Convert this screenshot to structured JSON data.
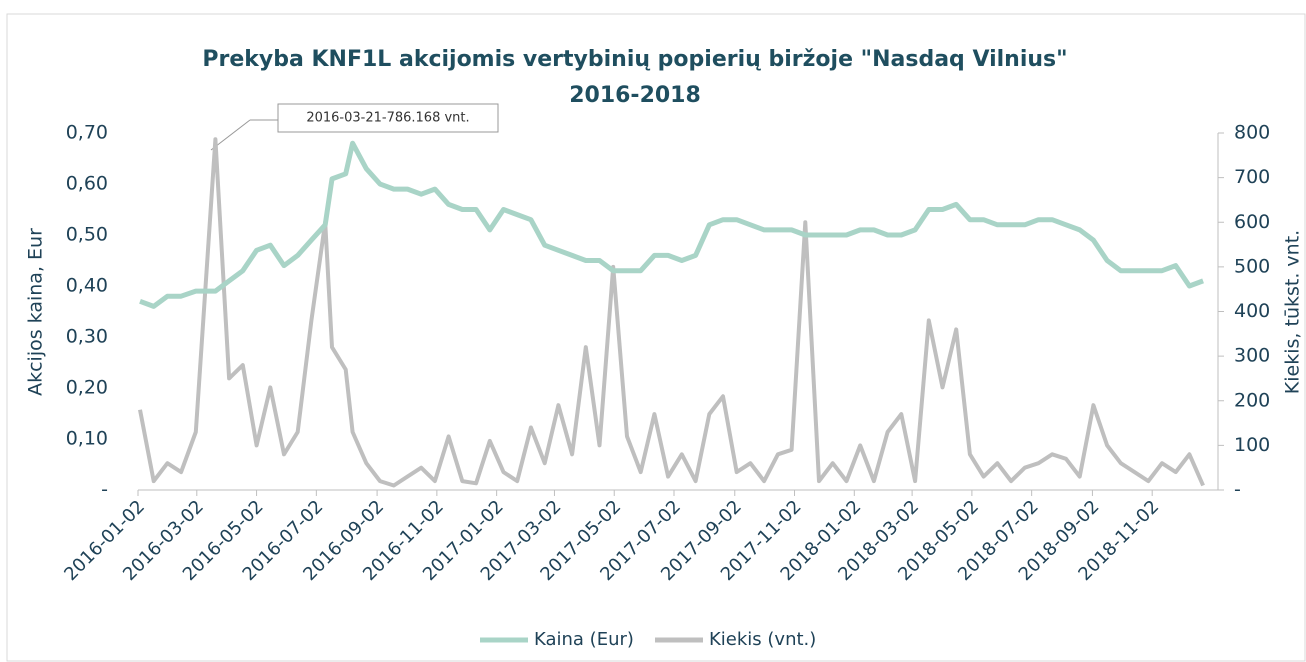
{
  "chart_data": {
    "type": "line",
    "title": "Prekyba KNF1L akcijomis vertybinių popierių biržoje \"Nasdaq Vilnius\"",
    "subtitle": "2016-2018",
    "y_label": "Akcijos kaina, Eur",
    "y2_label": "Kiekis, tūkst. vnt.",
    "annotation": "2016-03-21-786.168 vnt.",
    "x": [
      "2016-01-04",
      "2016-01-18",
      "2016-02-01",
      "2016-02-15",
      "2016-03-01",
      "2016-03-21",
      "2016-04-04",
      "2016-04-18",
      "2016-05-02",
      "2016-05-16",
      "2016-05-30",
      "2016-06-13",
      "2016-06-27",
      "2016-07-11",
      "2016-07-18",
      "2016-08-01",
      "2016-08-08",
      "2016-08-22",
      "2016-09-05",
      "2016-09-19",
      "2016-10-03",
      "2016-10-17",
      "2016-10-31",
      "2016-11-14",
      "2016-11-28",
      "2016-12-12",
      "2016-12-26",
      "2017-01-09",
      "2017-01-23",
      "2017-02-06",
      "2017-02-20",
      "2017-03-06",
      "2017-03-20",
      "2017-04-03",
      "2017-04-17",
      "2017-05-01",
      "2017-05-15",
      "2017-05-29",
      "2017-06-12",
      "2017-06-26",
      "2017-07-10",
      "2017-07-24",
      "2017-08-07",
      "2017-08-21",
      "2017-09-04",
      "2017-09-18",
      "2017-10-02",
      "2017-10-16",
      "2017-10-30",
      "2017-11-13",
      "2017-11-27",
      "2017-12-11",
      "2017-12-25",
      "2018-01-08",
      "2018-01-22",
      "2018-02-05",
      "2018-02-19",
      "2018-03-05",
      "2018-03-19",
      "2018-04-02",
      "2018-04-16",
      "2018-04-30",
      "2018-05-14",
      "2018-05-28",
      "2018-06-11",
      "2018-06-25",
      "2018-07-09",
      "2018-07-23",
      "2018-08-06",
      "2018-08-20",
      "2018-09-03",
      "2018-09-17",
      "2018-10-01",
      "2018-10-15",
      "2018-10-29",
      "2018-11-12",
      "2018-11-26",
      "2018-12-10",
      "2018-12-24"
    ],
    "series": [
      {
        "name": "Kaina (Eur)",
        "color": "#a9d4c7",
        "axis": "y",
        "values": [
          0.37,
          0.36,
          0.38,
          0.38,
          0.39,
          0.39,
          0.41,
          0.43,
          0.47,
          0.48,
          0.44,
          0.46,
          0.49,
          0.52,
          0.61,
          0.62,
          0.68,
          0.63,
          0.6,
          0.59,
          0.59,
          0.58,
          0.59,
          0.56,
          0.55,
          0.55,
          0.51,
          0.55,
          0.54,
          0.53,
          0.48,
          0.47,
          0.46,
          0.45,
          0.45,
          0.43,
          0.43,
          0.43,
          0.46,
          0.46,
          0.45,
          0.46,
          0.52,
          0.53,
          0.53,
          0.52,
          0.51,
          0.51,
          0.51,
          0.5,
          0.5,
          0.5,
          0.5,
          0.51,
          0.51,
          0.5,
          0.5,
          0.51,
          0.55,
          0.55,
          0.56,
          0.53,
          0.53,
          0.52,
          0.52,
          0.52,
          0.53,
          0.53,
          0.52,
          0.51,
          0.49,
          0.45,
          0.43,
          0.43,
          0.43,
          0.43,
          0.44,
          0.4,
          0.41
        ]
      },
      {
        "name": "Kiekis (vnt.)",
        "color": "#bfbfbf",
        "axis": "y2",
        "values": [
          180,
          20,
          60,
          40,
          130,
          786,
          250,
          280,
          100,
          230,
          80,
          130,
          380,
          600,
          320,
          270,
          130,
          60,
          20,
          10,
          30,
          50,
          20,
          120,
          20,
          15,
          110,
          40,
          20,
          140,
          60,
          190,
          80,
          320,
          100,
          500,
          120,
          40,
          170,
          30,
          80,
          20,
          170,
          210,
          40,
          60,
          20,
          80,
          90,
          600,
          20,
          60,
          20,
          100,
          20,
          130,
          170,
          20,
          380,
          230,
          360,
          80,
          30,
          60,
          20,
          50,
          60,
          80,
          70,
          30,
          190,
          100,
          60,
          40,
          20,
          60,
          40,
          80,
          10
        ]
      }
    ],
    "xlim": [
      "2016-01-02",
      "2018-12-31"
    ],
    "xticks": [
      "2016-01-02",
      "2016-03-02",
      "2016-05-02",
      "2016-07-02",
      "2016-09-02",
      "2016-11-02",
      "2017-01-02",
      "2017-03-02",
      "2017-05-02",
      "2017-07-02",
      "2017-09-02",
      "2017-11-02",
      "2018-01-02",
      "2018-03-02",
      "2018-05-02",
      "2018-07-02",
      "2018-09-02",
      "2018-11-02"
    ],
    "ylim": [
      0,
      0.7
    ],
    "yticks": [
      {
        "value": 0,
        "label": "-"
      },
      {
        "value": 0.1,
        "label": "0,10"
      },
      {
        "value": 0.2,
        "label": "0,20"
      },
      {
        "value": 0.3,
        "label": "0,30"
      },
      {
        "value": 0.4,
        "label": "0,40"
      },
      {
        "value": 0.5,
        "label": "0,50"
      },
      {
        "value": 0.6,
        "label": "0,60"
      },
      {
        "value": 0.7,
        "label": "0,70"
      }
    ],
    "y2lim": [
      0,
      800
    ],
    "y2ticks": [
      {
        "value": 0,
        "label": "-"
      },
      100,
      200,
      300,
      400,
      500,
      600,
      700,
      800
    ],
    "grid": false,
    "legend": "bottom"
  }
}
